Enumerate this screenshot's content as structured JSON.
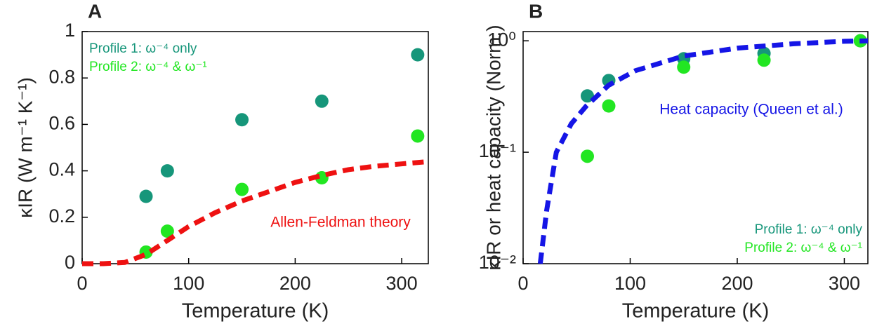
{
  "chart_data": [
    {
      "type": "scatter",
      "title": "A",
      "x_label": "Temperature (K)",
      "y_label": "κIR (W m⁻¹ K⁻¹)",
      "xlim": [
        0,
        325
      ],
      "xticks": [
        0,
        100,
        200,
        300
      ],
      "ylim": [
        0,
        1
      ],
      "yticks": [
        0,
        0.2,
        0.4,
        0.6,
        0.8,
        1
      ],
      "log_y": false,
      "legend": "upper left",
      "series": [
        {
          "name": "Profile 1: ω⁻⁴ only",
          "color": "#16967a",
          "kind": "markers",
          "x": [
            60,
            80,
            150,
            225,
            315
          ],
          "values": [
            0.29,
            0.4,
            0.62,
            0.7,
            0.9
          ]
        },
        {
          "name": "Profile 2: ω⁻⁴ & ω⁻¹",
          "color": "#22e622",
          "kind": "markers",
          "x": [
            60,
            80,
            150,
            225,
            315
          ],
          "values": [
            0.05,
            0.14,
            0.32,
            0.37,
            0.55
          ]
        },
        {
          "name": "Allen-Feldman theory",
          "color": "#ee1111",
          "kind": "dashed-line",
          "x": [
            0,
            20,
            40,
            60,
            80,
            100,
            125,
            150,
            175,
            200,
            225,
            250,
            275,
            300,
            325
          ],
          "values": [
            0,
            0,
            0.005,
            0.04,
            0.1,
            0.16,
            0.22,
            0.27,
            0.31,
            0.35,
            0.38,
            0.405,
            0.42,
            0.43,
            0.44
          ]
        }
      ]
    },
    {
      "type": "scatter",
      "title": "B",
      "x_label": "Temperature (K)",
      "y_label": "κIR or heat capacity (Norm.)",
      "xlim": [
        0,
        322
      ],
      "xticks": [
        0,
        100,
        200,
        300
      ],
      "ylim": [
        0.01,
        1.21
      ],
      "yticks": [
        {
          "value": 0.01,
          "label": "10⁻²"
        },
        {
          "value": 0.1,
          "label": "10⁻¹"
        },
        {
          "value": 1,
          "label": "10⁰"
        }
      ],
      "log_y": true,
      "legend": "lower right",
      "series": [
        {
          "name": "Profile 1: ω⁻⁴ only",
          "color": "#16967a",
          "kind": "markers",
          "x": [
            60,
            80,
            150,
            225,
            315
          ],
          "values": [
            0.32,
            0.44,
            0.69,
            0.77,
            1.0
          ]
        },
        {
          "name": "Profile 2: ω⁻⁴ & ω⁻¹",
          "color": "#22e622",
          "kind": "markers",
          "x": [
            60,
            80,
            150,
            225,
            315
          ],
          "values": [
            0.092,
            0.26,
            0.58,
            0.67,
            1.0
          ]
        },
        {
          "name": "Heat capacity (Queen et al.)",
          "color": "#1515e6",
          "kind": "dashed-line",
          "x": [
            16,
            22,
            31,
            45,
            59,
            80,
            105,
            150,
            200,
            253,
            300,
            322
          ],
          "values": [
            0.01,
            0.03,
            0.1,
            0.18,
            0.26,
            0.4,
            0.54,
            0.73,
            0.86,
            0.94,
            0.99,
            1.0
          ]
        }
      ]
    }
  ]
}
